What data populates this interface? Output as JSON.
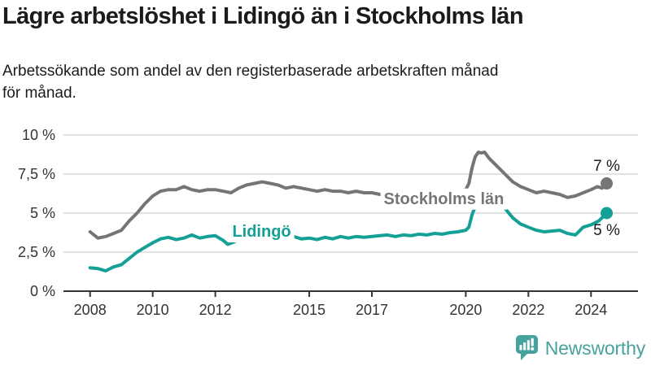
{
  "title": "Lägre arbetslöshet i Lidingö än i Stockholms län",
  "subtitle_lines": [
    "Arbetssökande som andel av den registerbaserade arbetskraften månad",
    "för månad."
  ],
  "branding": {
    "logo_text": "Newsworthy",
    "logo_icon": "bar-chart-speech-bubble-icon",
    "color": "#45a29c"
  },
  "colors": {
    "stockholm_line": "#757575",
    "lidingo_line": "#14a096",
    "grid": "#d9d9d9",
    "axis": "#333333",
    "tick_label": "#333333",
    "annotation_text": "#1b1b1b",
    "background": "#ffffff"
  },
  "chart_data": {
    "type": "line",
    "title": "Lägre arbetslöshet i Lidingö än i Stockholms län",
    "subtitle": "Arbetssökande som andel av den registerbaserade arbetskraften månad för månad.",
    "unit": "%",
    "grid": true,
    "x_axis": {
      "range": [
        2007.15,
        2025.5
      ],
      "ticks": [
        {
          "value": 2008,
          "label": "2008"
        },
        {
          "value": 2010,
          "label": "2010"
        },
        {
          "value": 2012,
          "label": "2012"
        },
        {
          "value": 2015,
          "label": "2015"
        },
        {
          "value": 2017,
          "label": "2017"
        },
        {
          "value": 2020,
          "label": "2020"
        },
        {
          "value": 2022,
          "label": "2022"
        },
        {
          "value": 2024,
          "label": "2024"
        }
      ]
    },
    "y_axis": {
      "range": [
        0,
        10
      ],
      "ticks": [
        {
          "value": 0,
          "label": "0 %"
        },
        {
          "value": 2.5,
          "label": "2,5 %"
        },
        {
          "value": 5,
          "label": "5 %"
        },
        {
          "value": 7.5,
          "label": "7,5 %"
        },
        {
          "value": 10,
          "label": "10 %"
        }
      ]
    },
    "series": [
      {
        "name": "Stockholms län",
        "slug": "stockholms-lan",
        "color": "#757575",
        "label": {
          "text": "Stockholms län",
          "x": 2019.3,
          "y": 5.95
        },
        "end_label": {
          "text": "7 %",
          "x": 2024.5,
          "y": 8.07
        },
        "end_dot": true,
        "points": [
          [
            2008.0,
            3.8
          ],
          [
            2008.25,
            3.4
          ],
          [
            2008.5,
            3.5
          ],
          [
            2008.75,
            3.7
          ],
          [
            2009.0,
            3.9
          ],
          [
            2009.25,
            4.5
          ],
          [
            2009.5,
            5.0
          ],
          [
            2009.75,
            5.6
          ],
          [
            2010.0,
            6.1
          ],
          [
            2010.25,
            6.4
          ],
          [
            2010.5,
            6.5
          ],
          [
            2010.75,
            6.5
          ],
          [
            2011.0,
            6.7
          ],
          [
            2011.25,
            6.5
          ],
          [
            2011.5,
            6.4
          ],
          [
            2011.75,
            6.5
          ],
          [
            2012.0,
            6.5
          ],
          [
            2012.25,
            6.4
          ],
          [
            2012.5,
            6.3
          ],
          [
            2012.75,
            6.6
          ],
          [
            2013.0,
            6.8
          ],
          [
            2013.25,
            6.9
          ],
          [
            2013.5,
            7.0
          ],
          [
            2013.75,
            6.9
          ],
          [
            2014.0,
            6.8
          ],
          [
            2014.25,
            6.6
          ],
          [
            2014.5,
            6.7
          ],
          [
            2014.75,
            6.6
          ],
          [
            2015.0,
            6.5
          ],
          [
            2015.25,
            6.4
          ],
          [
            2015.5,
            6.5
          ],
          [
            2015.75,
            6.4
          ],
          [
            2016.0,
            6.4
          ],
          [
            2016.25,
            6.3
          ],
          [
            2016.5,
            6.4
          ],
          [
            2016.75,
            6.3
          ],
          [
            2017.0,
            6.3
          ],
          [
            2017.25,
            6.2
          ],
          [
            2017.5,
            6.3
          ],
          [
            2017.75,
            6.2
          ],
          [
            2018.0,
            6.2
          ],
          [
            2018.25,
            6.1
          ],
          [
            2018.5,
            6.2
          ],
          [
            2018.75,
            6.2
          ],
          [
            2019.0,
            6.2
          ],
          [
            2019.25,
            6.3
          ],
          [
            2019.5,
            6.3
          ],
          [
            2019.75,
            6.4
          ],
          [
            2020.0,
            6.5
          ],
          [
            2020.1,
            6.9
          ],
          [
            2020.2,
            7.9
          ],
          [
            2020.3,
            8.6
          ],
          [
            2020.4,
            8.9
          ],
          [
            2020.5,
            8.85
          ],
          [
            2020.6,
            8.9
          ],
          [
            2020.75,
            8.5
          ],
          [
            2021.0,
            8.0
          ],
          [
            2021.25,
            7.5
          ],
          [
            2021.5,
            7.0
          ],
          [
            2021.75,
            6.7
          ],
          [
            2022.0,
            6.5
          ],
          [
            2022.25,
            6.3
          ],
          [
            2022.5,
            6.4
          ],
          [
            2022.75,
            6.3
          ],
          [
            2023.0,
            6.2
          ],
          [
            2023.25,
            6.0
          ],
          [
            2023.5,
            6.1
          ],
          [
            2023.75,
            6.3
          ],
          [
            2024.0,
            6.5
          ],
          [
            2024.2,
            6.7
          ],
          [
            2024.35,
            6.6
          ],
          [
            2024.5,
            6.9
          ]
        ]
      },
      {
        "name": "Lidingö",
        "slug": "lidingo",
        "color": "#14a096",
        "label": {
          "text": "Lidingö",
          "x": 2013.48,
          "y": 3.85
        },
        "end_label": {
          "text": "5 %",
          "x": 2024.5,
          "y": 3.96
        },
        "end_dot": true,
        "points": [
          [
            2008.0,
            1.5
          ],
          [
            2008.25,
            1.45
          ],
          [
            2008.5,
            1.3
          ],
          [
            2008.75,
            1.55
          ],
          [
            2009.0,
            1.7
          ],
          [
            2009.25,
            2.1
          ],
          [
            2009.5,
            2.5
          ],
          [
            2009.75,
            2.8
          ],
          [
            2010.0,
            3.1
          ],
          [
            2010.25,
            3.35
          ],
          [
            2010.5,
            3.45
          ],
          [
            2010.75,
            3.3
          ],
          [
            2011.0,
            3.4
          ],
          [
            2011.25,
            3.6
          ],
          [
            2011.5,
            3.4
          ],
          [
            2011.75,
            3.5
          ],
          [
            2012.0,
            3.55
          ],
          [
            2012.25,
            3.25
          ],
          [
            2012.4,
            3.0
          ],
          [
            2012.6,
            3.15
          ],
          [
            2012.75,
            3.3
          ],
          [
            2013.0,
            3.4
          ],
          [
            2013.25,
            3.5
          ],
          [
            2013.5,
            3.45
          ],
          [
            2013.75,
            3.5
          ],
          [
            2014.0,
            3.55
          ],
          [
            2014.25,
            3.4
          ],
          [
            2014.5,
            3.5
          ],
          [
            2014.75,
            3.35
          ],
          [
            2015.0,
            3.4
          ],
          [
            2015.25,
            3.3
          ],
          [
            2015.5,
            3.45
          ],
          [
            2015.75,
            3.35
          ],
          [
            2016.0,
            3.5
          ],
          [
            2016.25,
            3.4
          ],
          [
            2016.5,
            3.5
          ],
          [
            2016.75,
            3.45
          ],
          [
            2017.0,
            3.5
          ],
          [
            2017.25,
            3.55
          ],
          [
            2017.5,
            3.6
          ],
          [
            2017.75,
            3.5
          ],
          [
            2018.0,
            3.6
          ],
          [
            2018.25,
            3.55
          ],
          [
            2018.5,
            3.65
          ],
          [
            2018.75,
            3.6
          ],
          [
            2019.0,
            3.7
          ],
          [
            2019.25,
            3.65
          ],
          [
            2019.5,
            3.75
          ],
          [
            2019.75,
            3.8
          ],
          [
            2020.0,
            3.9
          ],
          [
            2020.1,
            4.1
          ],
          [
            2020.2,
            4.9
          ],
          [
            2020.3,
            5.4
          ],
          [
            2020.4,
            5.6
          ],
          [
            2020.5,
            5.55
          ],
          [
            2020.75,
            5.5
          ],
          [
            2021.0,
            5.6
          ],
          [
            2021.1,
            5.65
          ],
          [
            2021.25,
            5.3
          ],
          [
            2021.5,
            4.7
          ],
          [
            2021.75,
            4.3
          ],
          [
            2022.0,
            4.1
          ],
          [
            2022.25,
            3.9
          ],
          [
            2022.5,
            3.8
          ],
          [
            2022.75,
            3.85
          ],
          [
            2023.0,
            3.9
          ],
          [
            2023.25,
            3.7
          ],
          [
            2023.5,
            3.6
          ],
          [
            2023.75,
            4.1
          ],
          [
            2024.0,
            4.25
          ],
          [
            2024.25,
            4.5
          ],
          [
            2024.5,
            5.0
          ]
        ]
      }
    ]
  }
}
